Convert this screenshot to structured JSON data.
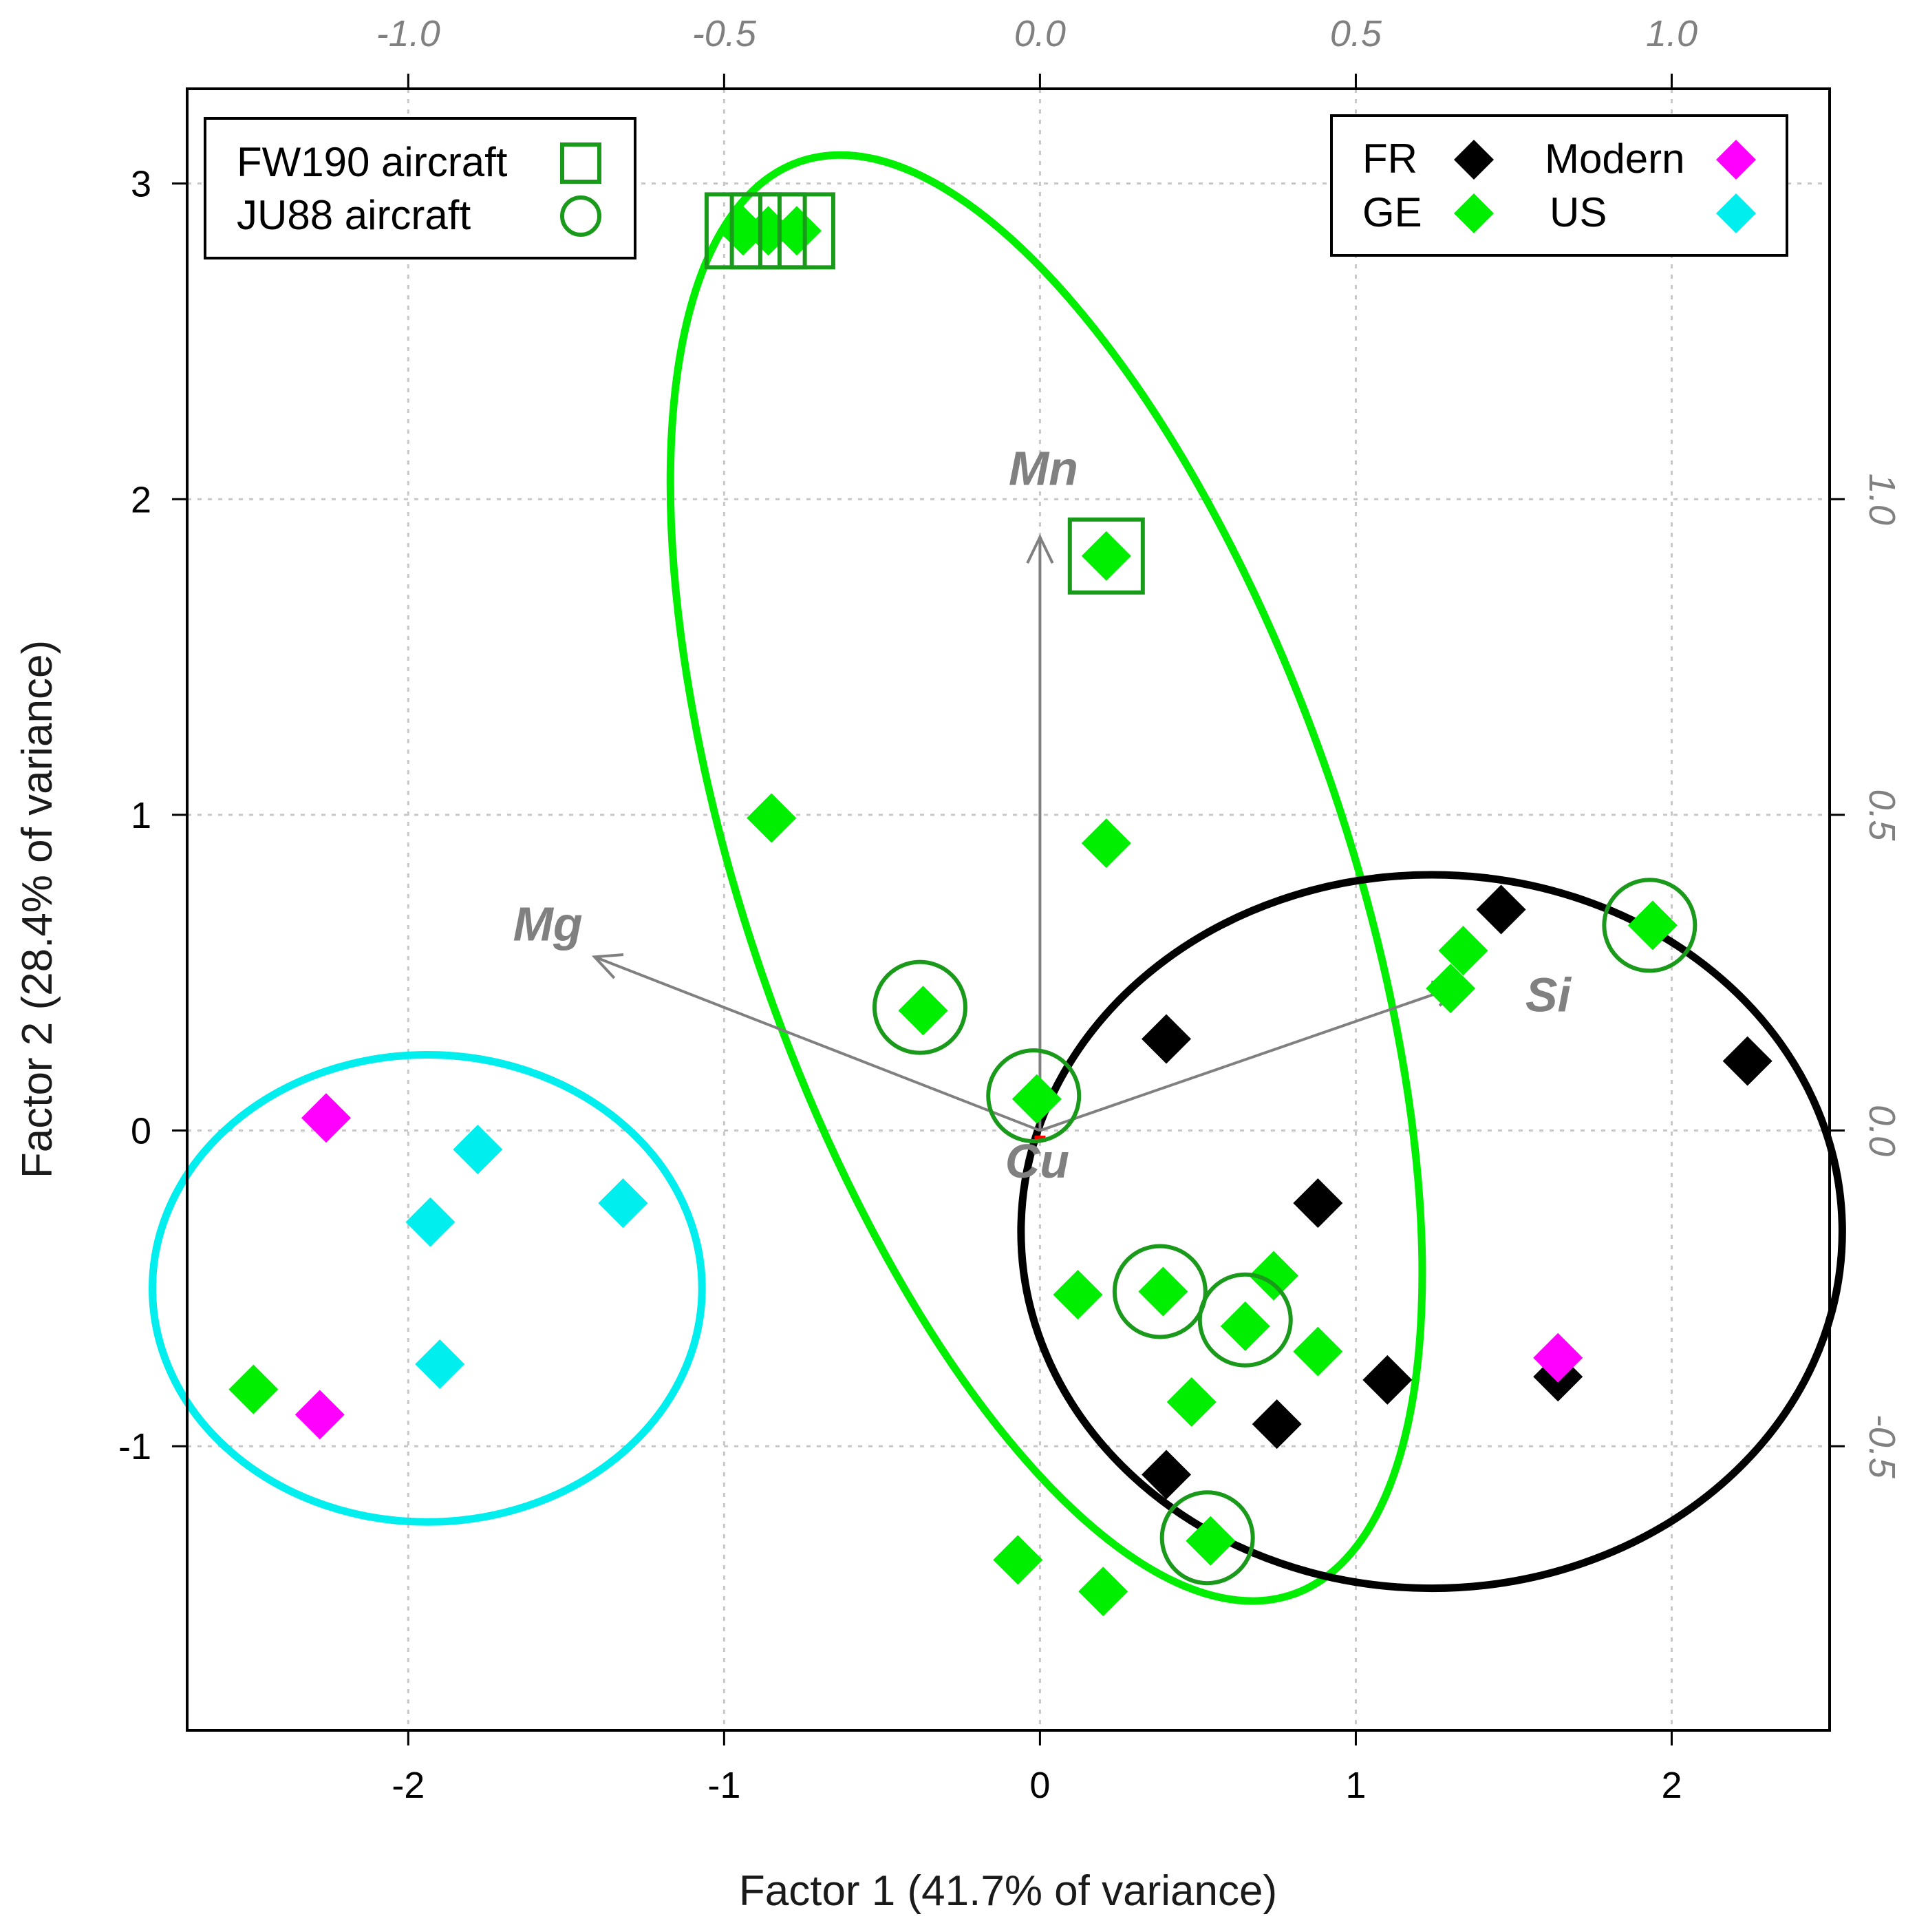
{
  "chart_data": {
    "type": "scatter",
    "subtype": "pca-biplot",
    "title": "",
    "xlabel": "Factor 1 (41.7% of variance)",
    "ylabel": "Factor 2 (28.4% of variance)",
    "xlim": [
      -2.7,
      2.5
    ],
    "ylim": [
      -1.9,
      3.3
    ],
    "x_ticks": [
      "-2",
      "-1",
      "0",
      "1",
      "2"
    ],
    "y_ticks": [
      "-1",
      "0",
      "1",
      "2",
      "3"
    ],
    "loading_x_ticks": [
      "-1.0",
      "-0.5",
      "0.0",
      "0.5",
      "1.0"
    ],
    "loading_y_ticks": [
      "-0.5",
      "0.0",
      "0.5",
      "1.0"
    ],
    "loading_scale": 2.0,
    "grid": true,
    "colors": {
      "FR": "#000000",
      "GE": "#00ee00",
      "Modern": "#ff00ff",
      "US": "#00eeee",
      "vector": "#808080",
      "aircraft_marker": "#1a9a1a",
      "origin_mark": "#ff0000"
    },
    "series": [
      {
        "name": "FR",
        "points": [
          [
            1.46,
            0.7
          ],
          [
            0.4,
            0.29
          ],
          [
            2.24,
            0.22
          ],
          [
            0.88,
            -0.23
          ],
          [
            1.1,
            -0.79
          ],
          [
            0.75,
            -0.93
          ],
          [
            0.4,
            -1.09
          ],
          [
            1.64,
            -0.78
          ]
        ]
      },
      {
        "name": "GE",
        "points": [
          [
            -0.94,
            2.85
          ],
          [
            -0.86,
            2.85
          ],
          [
            -0.77,
            2.85
          ],
          [
            0.21,
            1.82
          ],
          [
            -0.85,
            0.99
          ],
          [
            0.21,
            0.91
          ],
          [
            1.34,
            0.57
          ],
          [
            1.3,
            0.45
          ],
          [
            1.94,
            0.65
          ],
          [
            -0.37,
            0.38
          ],
          [
            -0.01,
            0.1
          ],
          [
            0.12,
            -0.52
          ],
          [
            0.39,
            -0.51
          ],
          [
            0.74,
            -0.46
          ],
          [
            0.65,
            -0.62
          ],
          [
            0.88,
            -0.7
          ],
          [
            0.48,
            -0.86
          ],
          [
            0.54,
            -1.3
          ],
          [
            -0.07,
            -1.36
          ],
          [
            0.2,
            -1.46
          ],
          [
            -2.49,
            -0.82
          ]
        ]
      },
      {
        "name": "Modern",
        "points": [
          [
            -2.26,
            0.04
          ],
          [
            -2.28,
            -0.9
          ],
          [
            1.64,
            -0.72
          ]
        ]
      },
      {
        "name": "US",
        "points": [
          [
            -1.78,
            -0.06
          ],
          [
            -1.32,
            -0.23
          ],
          [
            -1.93,
            -0.29
          ],
          [
            -1.9,
            -0.74
          ]
        ]
      }
    ],
    "aircraft_markers": [
      {
        "name": "FW190 aircraft",
        "shape": "square",
        "points": [
          [
            -0.94,
            2.85
          ],
          [
            -0.86,
            2.85
          ],
          [
            -0.77,
            2.85
          ],
          [
            0.21,
            1.82
          ]
        ]
      },
      {
        "name": "JU88 aircraft",
        "shape": "circle",
        "points": [
          [
            -0.38,
            0.39
          ],
          [
            -0.02,
            0.11
          ],
          [
            1.93,
            0.65
          ],
          [
            0.38,
            -0.51
          ],
          [
            0.65,
            -0.6
          ],
          [
            0.53,
            -1.29
          ]
        ]
      }
    ],
    "ellipses": [
      {
        "group": "US",
        "cx": -1.94,
        "cy": -0.5,
        "rx": 0.87,
        "ry": 0.74,
        "angle": 0
      },
      {
        "group": "GE",
        "cx": 0.02,
        "cy": 0.8,
        "rx": 0.95,
        "ry": 2.4,
        "angle": -19
      },
      {
        "group": "FR",
        "cx": 1.24,
        "cy": -0.32,
        "rx": 1.3,
        "ry": 1.13,
        "angle": 0
      }
    ],
    "loadings": [
      {
        "label": "Mn",
        "x": 0.0,
        "y": 0.94
      },
      {
        "label": "Mg",
        "x": -0.705,
        "y": 0.275
      },
      {
        "label": "Si",
        "x": 0.665,
        "y": 0.23
      },
      {
        "label": "Cu",
        "x": 0.0,
        "y": -0.02
      }
    ],
    "legends": [
      {
        "position": "top-left",
        "entries": [
          {
            "label": "FW190 aircraft",
            "symbol": "square"
          },
          {
            "label": "JU88 aircraft",
            "symbol": "circle"
          }
        ]
      },
      {
        "position": "top-right",
        "entries": [
          {
            "label": "FR",
            "group": "FR"
          },
          {
            "label": "Modern",
            "group": "Modern"
          },
          {
            "label": "GE",
            "group": "GE"
          },
          {
            "label": "US",
            "group": "US"
          }
        ]
      }
    ]
  }
}
